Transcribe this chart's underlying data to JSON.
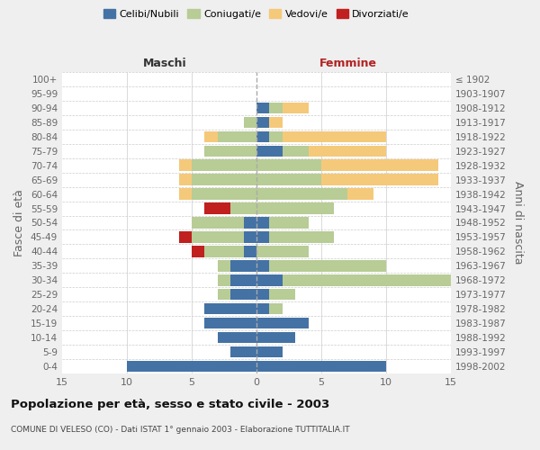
{
  "age_groups": [
    "0-4",
    "5-9",
    "10-14",
    "15-19",
    "20-24",
    "25-29",
    "30-34",
    "35-39",
    "40-44",
    "45-49",
    "50-54",
    "55-59",
    "60-64",
    "65-69",
    "70-74",
    "75-79",
    "80-84",
    "85-89",
    "90-94",
    "95-99",
    "100+"
  ],
  "birth_years": [
    "1998-2002",
    "1993-1997",
    "1988-1992",
    "1983-1987",
    "1978-1982",
    "1973-1977",
    "1968-1972",
    "1963-1967",
    "1958-1962",
    "1953-1957",
    "1948-1952",
    "1943-1947",
    "1938-1942",
    "1933-1937",
    "1928-1932",
    "1923-1927",
    "1918-1922",
    "1913-1917",
    "1908-1912",
    "1903-1907",
    "≤ 1902"
  ],
  "maschi": {
    "celibi": [
      10,
      2,
      3,
      4,
      4,
      2,
      2,
      2,
      1,
      1,
      1,
      0,
      0,
      0,
      0,
      0,
      0,
      0,
      0,
      0,
      0
    ],
    "coniugati": [
      0,
      0,
      0,
      0,
      0,
      1,
      1,
      1,
      3,
      4,
      4,
      2,
      5,
      5,
      5,
      4,
      3,
      1,
      0,
      0,
      0
    ],
    "vedovi": [
      0,
      0,
      0,
      0,
      0,
      0,
      0,
      0,
      0,
      0,
      0,
      0,
      1,
      1,
      1,
      0,
      1,
      0,
      0,
      0,
      0
    ],
    "divorziati": [
      0,
      0,
      0,
      0,
      0,
      0,
      0,
      0,
      1,
      1,
      0,
      2,
      0,
      0,
      0,
      0,
      0,
      0,
      0,
      0,
      0
    ]
  },
  "femmine": {
    "nubili": [
      10,
      2,
      3,
      4,
      1,
      1,
      2,
      1,
      0,
      1,
      1,
      0,
      0,
      0,
      0,
      2,
      1,
      1,
      1,
      0,
      0
    ],
    "coniugate": [
      0,
      0,
      0,
      0,
      1,
      2,
      13,
      9,
      4,
      5,
      3,
      6,
      7,
      5,
      5,
      2,
      1,
      0,
      1,
      0,
      0
    ],
    "vedove": [
      0,
      0,
      0,
      0,
      0,
      0,
      0,
      0,
      0,
      0,
      0,
      0,
      2,
      9,
      9,
      6,
      8,
      1,
      2,
      0,
      0
    ],
    "divorziate": [
      0,
      0,
      0,
      0,
      0,
      0,
      0,
      0,
      0,
      0,
      0,
      0,
      0,
      0,
      0,
      0,
      0,
      0,
      0,
      0,
      0
    ]
  },
  "colors": {
    "celibi": "#4472a4",
    "coniugati": "#b8cc96",
    "vedovi": "#f5c97a",
    "divorziati": "#c0201e"
  },
  "xlim": 15,
  "title": "Popolazione per età, sesso e stato civile - 2003",
  "subtitle": "COMUNE DI VELESO (CO) - Dati ISTAT 1° gennaio 2003 - Elaborazione TUTTITALIA.IT",
  "ylabel": "Fasce di età",
  "ylabel_right": "Anni di nascita",
  "xlabel_left": "Maschi",
  "xlabel_right": "Femmine",
  "bg_color": "#efefef",
  "plot_bg_color": "#ffffff"
}
